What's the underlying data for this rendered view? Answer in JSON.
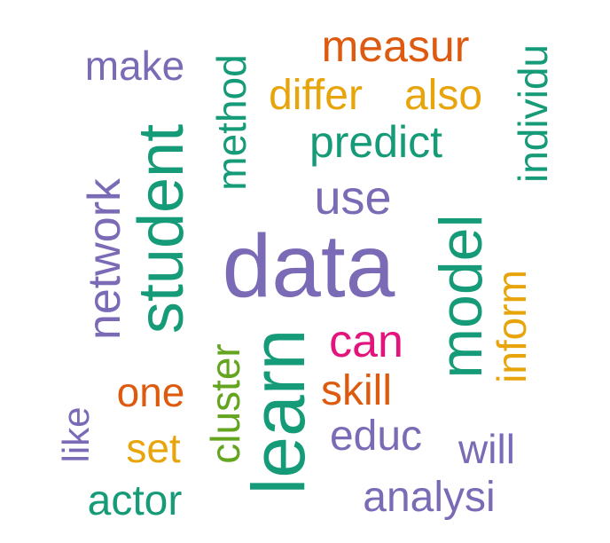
{
  "colors": {
    "purple": "#7b6ab5",
    "green": "#159b77",
    "orange": "#dd5a0f",
    "gold": "#e7a50b",
    "pink": "#e3147b",
    "lime": "#64a520"
  },
  "words": {
    "data": "data",
    "student": "student",
    "learn": "learn",
    "model": "model",
    "network": "network",
    "use": "use",
    "predict": "predict",
    "method": "method",
    "measur": "measur",
    "differ": "differ",
    "also": "also",
    "make": "make",
    "individu": "individu",
    "can": "can",
    "inform": "inform",
    "skill": "skill",
    "one": "one",
    "cluster": "cluster",
    "educ": "educ",
    "will": "will",
    "like": "like",
    "set": "set",
    "actor": "actor",
    "analysi": "analysi"
  }
}
